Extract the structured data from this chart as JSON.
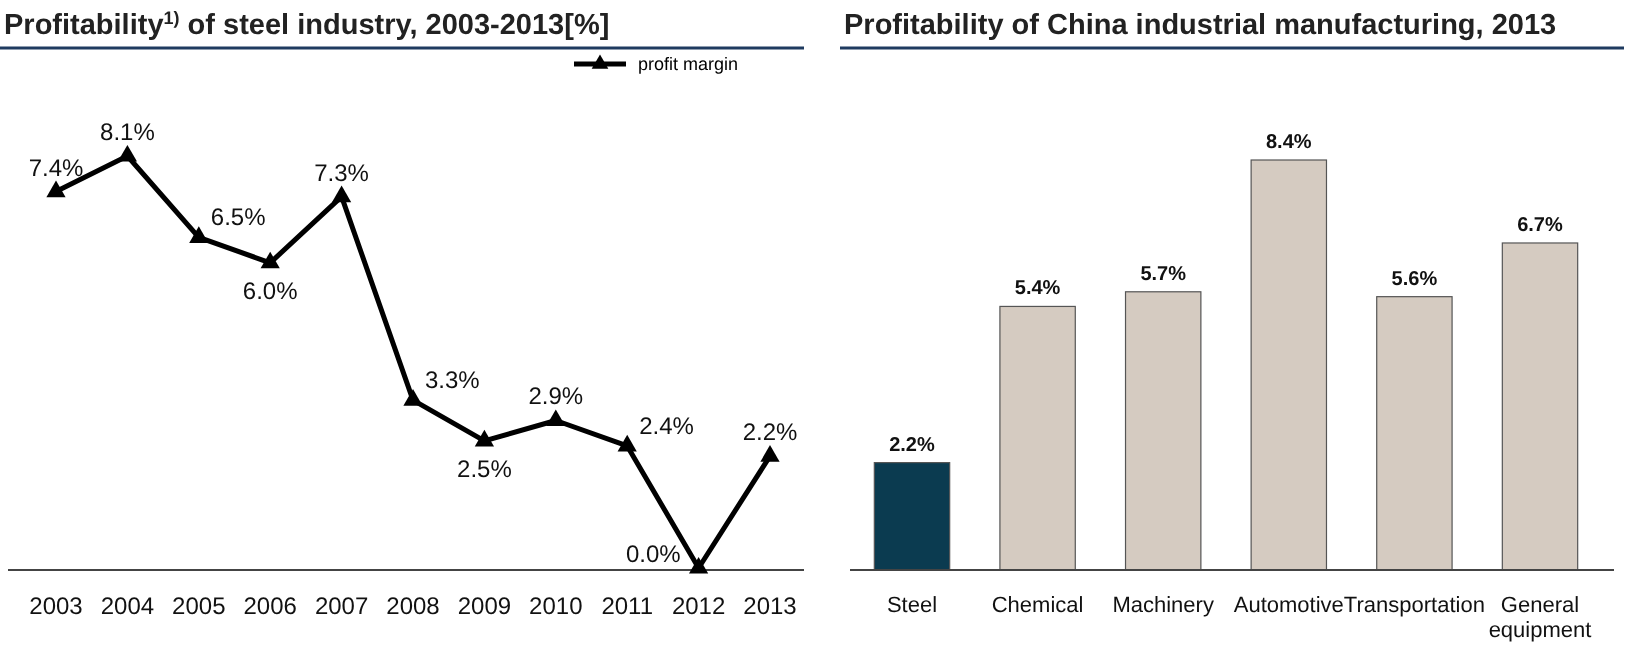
{
  "chart_data": [
    {
      "type": "line",
      "title": "Profitability$^{1)}$ of steel industry, 2003-2013[%]",
      "categories": [
        "2003",
        "2004",
        "2005",
        "2006",
        "2007",
        "2008",
        "2009",
        "2010",
        "2011",
        "2012",
        "2013"
      ],
      "series": [
        {
          "name": "profit margin",
          "color": "#000000",
          "values": [
            7.4,
            8.1,
            6.5,
            6.0,
            7.3,
            3.3,
            2.5,
            2.9,
            2.4,
            0.0,
            2.2
          ],
          "value_labels": [
            "7.4%",
            "8.1%",
            "6.5%",
            "6.0%",
            "7.3%",
            "3.3%",
            "2.5%",
            "2.9%",
            "2.4%",
            "0.0%",
            "2.2%"
          ]
        }
      ],
      "marker": "triangle",
      "legend": "top right"
    },
    {
      "type": "bar",
      "title": "Profitability of China industrial manufacturing, 2013",
      "categories": [
        "Steel",
        "Chemical",
        "Machinery",
        "Automotive",
        "Transportation",
        "General equipment"
      ],
      "values": [
        2.2,
        5.4,
        5.7,
        8.4,
        5.6,
        6.7
      ],
      "colors": [
        "#0b3b50",
        "#d5cbc1",
        "#d5cbc1",
        "#d5cbc1",
        "#d5cbc1",
        "#d5cbc1"
      ],
      "value_labels": [
        "2.2%",
        "5.4%",
        "5.7%",
        "8.4%",
        "5.6%",
        "6.7%"
      ]
    }
  ]
}
